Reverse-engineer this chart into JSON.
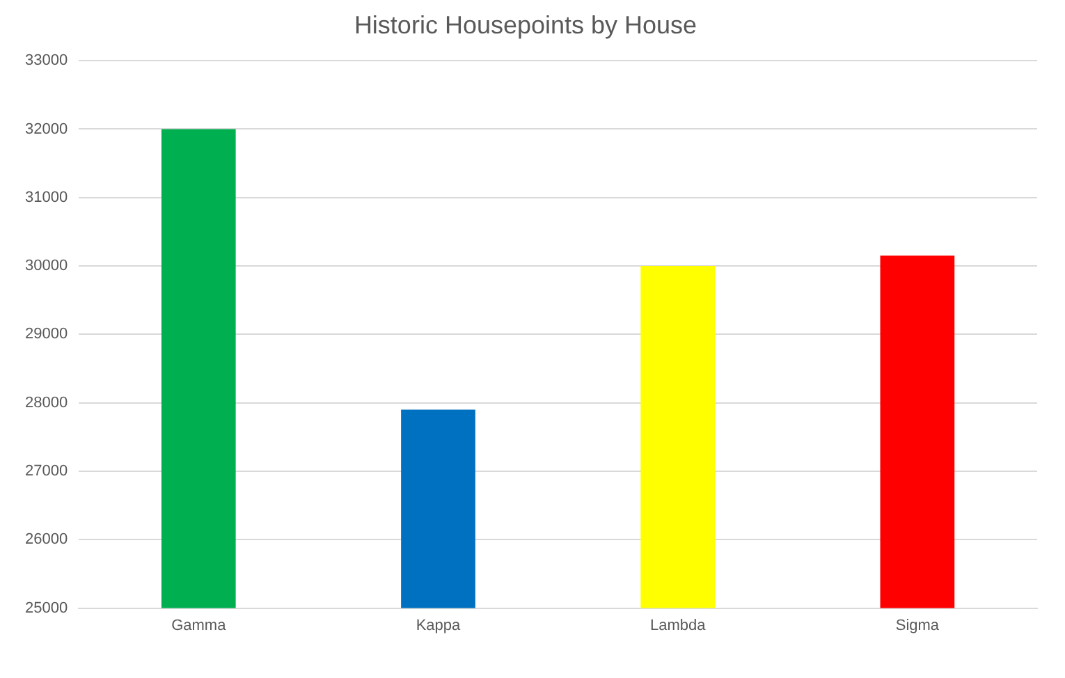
{
  "chart_data": {
    "type": "bar",
    "title": "Historic Housepoints by House",
    "categories": [
      "Gamma",
      "Kappa",
      "Lambda",
      "Sigma"
    ],
    "values": [
      32000,
      27900,
      30000,
      30150
    ],
    "colors": [
      "#00b050",
      "#0070c0",
      "#ffff00",
      "#ff0000"
    ],
    "ylim": [
      25000,
      33000
    ],
    "yticks": [
      25000,
      26000,
      27000,
      28000,
      29000,
      30000,
      31000,
      32000,
      33000
    ],
    "grid": "y"
  }
}
